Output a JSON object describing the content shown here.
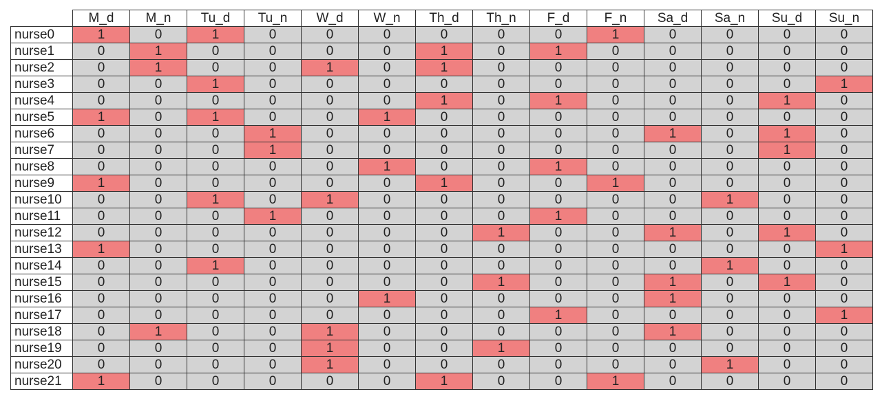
{
  "chart_data": {
    "type": "table",
    "columns": [
      "M_d",
      "M_n",
      "Tu_d",
      "Tu_n",
      "W_d",
      "W_n",
      "Th_d",
      "Th_n",
      "F_d",
      "F_n",
      "Sa_d",
      "Sa_n",
      "Su_d",
      "Su_n"
    ],
    "rows": [
      "nurse0",
      "nurse1",
      "nurse2",
      "nurse3",
      "nurse4",
      "nurse5",
      "nurse6",
      "nurse7",
      "nurse8",
      "nurse9",
      "nurse10",
      "nurse11",
      "nurse12",
      "nurse13",
      "nurse14",
      "nurse15",
      "nurse16",
      "nurse17",
      "nurse18",
      "nurse19",
      "nurse20",
      "nurse21"
    ],
    "values": [
      [
        1,
        0,
        1,
        0,
        0,
        0,
        0,
        0,
        0,
        1,
        0,
        0,
        0,
        0
      ],
      [
        0,
        1,
        0,
        0,
        0,
        0,
        1,
        0,
        1,
        0,
        0,
        0,
        0,
        0
      ],
      [
        0,
        1,
        0,
        0,
        1,
        0,
        1,
        0,
        0,
        0,
        0,
        0,
        0,
        0
      ],
      [
        0,
        0,
        1,
        0,
        0,
        0,
        0,
        0,
        0,
        0,
        0,
        0,
        0,
        1
      ],
      [
        0,
        0,
        0,
        0,
        0,
        0,
        1,
        0,
        1,
        0,
        0,
        0,
        1,
        0
      ],
      [
        1,
        0,
        1,
        0,
        0,
        1,
        0,
        0,
        0,
        0,
        0,
        0,
        0,
        0
      ],
      [
        0,
        0,
        0,
        1,
        0,
        0,
        0,
        0,
        0,
        0,
        1,
        0,
        1,
        0
      ],
      [
        0,
        0,
        0,
        1,
        0,
        0,
        0,
        0,
        0,
        0,
        0,
        0,
        1,
        0
      ],
      [
        0,
        0,
        0,
        0,
        0,
        1,
        0,
        0,
        1,
        0,
        0,
        0,
        0,
        0
      ],
      [
        1,
        0,
        0,
        0,
        0,
        0,
        1,
        0,
        0,
        1,
        0,
        0,
        0,
        0
      ],
      [
        0,
        0,
        1,
        0,
        1,
        0,
        0,
        0,
        0,
        0,
        0,
        1,
        0,
        0
      ],
      [
        0,
        0,
        0,
        1,
        0,
        0,
        0,
        0,
        1,
        0,
        0,
        0,
        0,
        0
      ],
      [
        0,
        0,
        0,
        0,
        0,
        0,
        0,
        1,
        0,
        0,
        1,
        0,
        1,
        0
      ],
      [
        1,
        0,
        0,
        0,
        0,
        0,
        0,
        0,
        0,
        0,
        0,
        0,
        0,
        1
      ],
      [
        0,
        0,
        1,
        0,
        0,
        0,
        0,
        0,
        0,
        0,
        0,
        1,
        0,
        0
      ],
      [
        0,
        0,
        0,
        0,
        0,
        0,
        0,
        1,
        0,
        0,
        1,
        0,
        1,
        0
      ],
      [
        0,
        0,
        0,
        0,
        0,
        1,
        0,
        0,
        0,
        0,
        1,
        0,
        0,
        0
      ],
      [
        0,
        0,
        0,
        0,
        0,
        0,
        0,
        0,
        1,
        0,
        0,
        0,
        0,
        1
      ],
      [
        0,
        1,
        0,
        0,
        1,
        0,
        0,
        0,
        0,
        0,
        1,
        0,
        0,
        0
      ],
      [
        0,
        0,
        0,
        0,
        1,
        0,
        0,
        1,
        0,
        0,
        0,
        0,
        0,
        0
      ],
      [
        0,
        0,
        0,
        0,
        1,
        0,
        0,
        0,
        0,
        0,
        0,
        1,
        0,
        0
      ],
      [
        1,
        0,
        0,
        0,
        0,
        0,
        1,
        0,
        0,
        1,
        0,
        0,
        0,
        0
      ]
    ],
    "colors": {
      "assigned": "#f08080",
      "unassigned": "#d3d3d3"
    }
  }
}
